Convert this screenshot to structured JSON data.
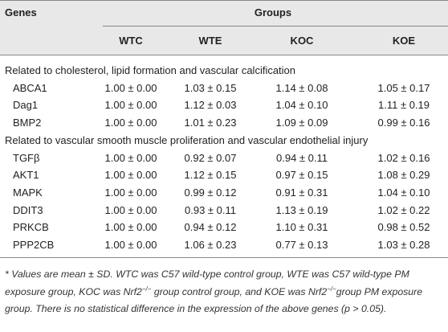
{
  "table": {
    "header": {
      "genes": "Genes",
      "groups": "Groups",
      "columns": [
        "WTC",
        "WTE",
        "KOC",
        "KOE"
      ]
    },
    "sections": [
      {
        "title": "Related to cholesterol, lipid formation and vascular calcification",
        "rows": [
          {
            "gene": "ABCA1",
            "values": [
              "1.00 ± 0.00",
              "1.03 ± 0.15",
              "1.14 ± 0.08",
              "1.05 ± 0.17"
            ]
          },
          {
            "gene": "Dag1",
            "values": [
              "1.00 ± 0.00",
              "1.12 ± 0.03",
              "1.04 ± 0.10",
              "1.11 ± 0.19"
            ]
          },
          {
            "gene": "BMP2",
            "values": [
              "1.00 ± 0.00",
              "1.01 ± 0.23",
              "1.09 ± 0.09",
              "0.99 ± 0.16"
            ]
          }
        ]
      },
      {
        "title": "Related to vascular smooth muscle proliferation and vascular endothelial injury",
        "rows": [
          {
            "gene": "TGFβ",
            "values": [
              "1.00 ± 0.00",
              "0.92 ± 0.07",
              "0.94 ± 0.11",
              "1.02 ± 0.16"
            ]
          },
          {
            "gene": "AKT1",
            "values": [
              "1.00 ± 0.00",
              "1.12 ± 0.15",
              "0.97 ± 0.15",
              "1.08 ± 0.29"
            ]
          },
          {
            "gene": "MAPK",
            "values": [
              "1.00 ± 0.00",
              "0.99 ± 0.12",
              "0.91 ± 0.31",
              "1.04 ± 0.10"
            ]
          },
          {
            "gene": "DDIT3",
            "values": [
              "1.00 ± 0.00",
              "0.93 ± 0.11",
              "1.13 ± 0.19",
              "1.02 ± 0.22"
            ]
          },
          {
            "gene": "PRKCB",
            "values": [
              "1.00 ± 0.00",
              "0.94 ± 0.12",
              "1.10 ± 0.31",
              "0.98 ± 0.52"
            ]
          },
          {
            "gene": "PPP2CB",
            "values": [
              "1.00 ± 0.00",
              "1.06 ± 0.23",
              "0.77 ± 0.13",
              "1.03 ± 0.28"
            ]
          }
        ]
      }
    ]
  },
  "footnote": [
    {
      "text": "* Values are mean ± SD. WTC was C57 wild-type control group, WTE was C57 wild-type PM exposure group, KOC was Nrf2"
    },
    {
      "sup": "−/−"
    },
    {
      "text": " group control group, and KOE was Nrf2"
    },
    {
      "sup": "−/−"
    },
    {
      "text": "group PM exposure group. There is no statistical difference in the expression of the above genes (p > 0.05)."
    }
  ]
}
